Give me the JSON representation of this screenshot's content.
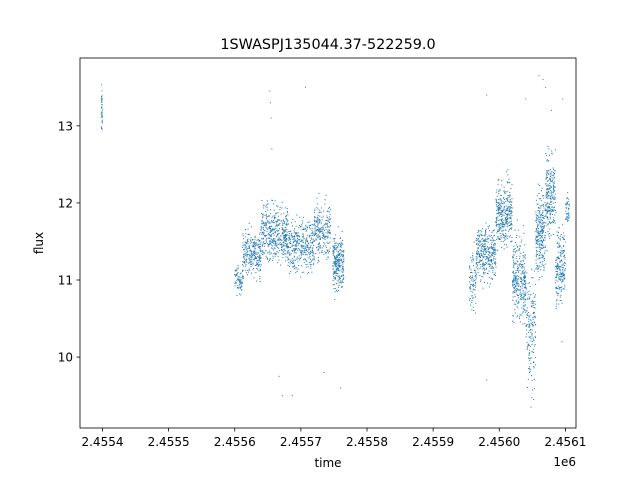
{
  "chart_data": {
    "type": "scatter",
    "title": "1SWASPJ135044.37-522259.0",
    "xlabel": "time",
    "ylabel": "flux",
    "x_offset_label": "1e6",
    "xlim": [
      2455366,
      2456116
    ],
    "ylim": [
      9.08,
      13.88
    ],
    "x_ticks": [
      2455400,
      2455500,
      2455600,
      2455700,
      2455800,
      2455900,
      2456000,
      2456100
    ],
    "x_tick_labels": [
      "2.4554",
      "2.4555",
      "2.4556",
      "2.4557",
      "2.4558",
      "2.4559",
      "2.4560",
      "2.4561"
    ],
    "y_ticks": [
      10,
      11,
      12,
      13
    ],
    "y_tick_labels": [
      "10",
      "11",
      "12",
      "13"
    ],
    "grid": false,
    "point_color": "#1f77b4",
    "series_segments": [
      {
        "x_range": [
          2455398,
          2455400
        ],
        "y_center": 13.2,
        "y_spread": 0.25,
        "points": 40
      },
      {
        "x_range": [
          2455600,
          2455612
        ],
        "y_center": 11.0,
        "y_spread": 0.15,
        "points": 70
      },
      {
        "x_range": [
          2455612,
          2455640
        ],
        "y_center": 11.35,
        "y_spread": 0.25,
        "points": 260
      },
      {
        "x_range": [
          2455640,
          2455680
        ],
        "y_center": 11.6,
        "y_spread": 0.3,
        "points": 420
      },
      {
        "x_range": [
          2455680,
          2455720
        ],
        "y_center": 11.45,
        "y_spread": 0.3,
        "points": 360
      },
      {
        "x_range": [
          2455720,
          2455745
        ],
        "y_center": 11.65,
        "y_spread": 0.28,
        "points": 230
      },
      {
        "x_range": [
          2455748,
          2455765
        ],
        "y_center": 11.2,
        "y_spread": 0.3,
        "points": 260
      },
      {
        "x_range": [
          2455955,
          2455965
        ],
        "y_center": 11.0,
        "y_spread": 0.3,
        "points": 80
      },
      {
        "x_range": [
          2455965,
          2455995
        ],
        "y_center": 11.35,
        "y_spread": 0.3,
        "points": 340
      },
      {
        "x_range": [
          2455995,
          2456020
        ],
        "y_center": 11.85,
        "y_spread": 0.35,
        "points": 330
      },
      {
        "x_range": [
          2456020,
          2456040
        ],
        "y_center": 11.0,
        "y_spread": 0.45,
        "points": 300
      },
      {
        "x_range": [
          2456040,
          2456055
        ],
        "y_center": 10.4,
        "y_spread": 0.6,
        "points": 160
      },
      {
        "x_range": [
          2456055,
          2456070
        ],
        "y_center": 11.6,
        "y_spread": 0.45,
        "points": 260
      },
      {
        "x_range": [
          2456070,
          2456085
        ],
        "y_center": 12.1,
        "y_spread": 0.45,
        "points": 230
      },
      {
        "x_range": [
          2456085,
          2456100
        ],
        "y_center": 11.2,
        "y_spread": 0.4,
        "points": 200
      },
      {
        "x_range": [
          2456100,
          2456106
        ],
        "y_center": 11.9,
        "y_spread": 0.25,
        "points": 40
      }
    ],
    "outliers": [
      {
        "x": 2455653,
        "y": 13.45
      },
      {
        "x": 2455654,
        "y": 13.3
      },
      {
        "x": 2455655,
        "y": 13.1
      },
      {
        "x": 2455656,
        "y": 12.7
      },
      {
        "x": 2455667,
        "y": 9.75
      },
      {
        "x": 2455672,
        "y": 9.5
      },
      {
        "x": 2455687,
        "y": 9.5
      },
      {
        "x": 2455735,
        "y": 9.8
      },
      {
        "x": 2455760,
        "y": 9.6
      },
      {
        "x": 2455707,
        "y": 13.5
      },
      {
        "x": 2455981,
        "y": 13.4
      },
      {
        "x": 2455981,
        "y": 9.7
      },
      {
        "x": 2456040,
        "y": 13.35
      },
      {
        "x": 2456048,
        "y": 9.35
      },
      {
        "x": 2456052,
        "y": 9.45
      },
      {
        "x": 2456060,
        "y": 13.65
      },
      {
        "x": 2456066,
        "y": 13.6
      },
      {
        "x": 2456070,
        "y": 13.5
      },
      {
        "x": 2456079,
        "y": 13.2
      },
      {
        "x": 2456096,
        "y": 13.35
      },
      {
        "x": 2456095,
        "y": 10.2
      }
    ]
  }
}
